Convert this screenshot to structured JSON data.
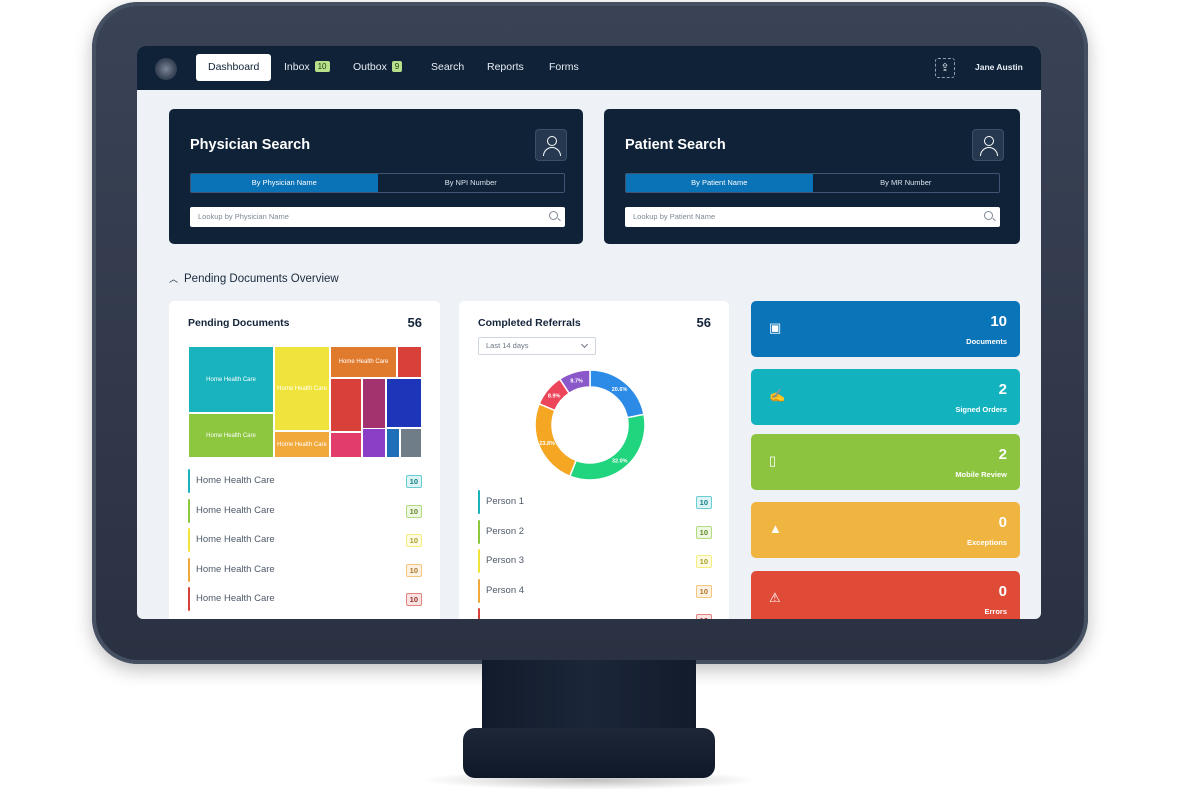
{
  "nav": {
    "tabs": [
      {
        "label": "Dashboard"
      },
      {
        "label": "Inbox",
        "badge": "10"
      },
      {
        "label": "Outbox",
        "badge": "9"
      },
      {
        "label": "Search"
      },
      {
        "label": "Reports"
      },
      {
        "label": "Forms"
      }
    ],
    "user_name": "Jane Austin",
    "upload_icon": "upload-icon"
  },
  "physician_search": {
    "title": "Physician Search",
    "tabs": [
      "By Physician Name",
      "By NPI Number"
    ],
    "placeholder": "Lookup by Physician Name",
    "icon": "doctor-icon"
  },
  "patient_search": {
    "title": "Patient Search",
    "tabs": [
      "By Patient Name",
      "By MR Number"
    ],
    "placeholder": "Lookup by Patient Name",
    "icon": "patient-icon"
  },
  "overview": {
    "title": "Pending Documents Overview"
  },
  "pending_documents": {
    "title": "Pending Documents",
    "count": "56",
    "treemap": [
      {
        "label": "Home Health Care",
        "color": "#19b3bd"
      },
      {
        "label": "Home Health Care",
        "color": "#8dc63f"
      },
      {
        "label": "Home Health Care",
        "color": "#f0e43c"
      },
      {
        "label": "Home Health Care",
        "color": "#f2a93b"
      },
      {
        "label": "Home Health Care",
        "color": "#e07b2e"
      },
      {
        "label": "",
        "color": "#d7413a"
      },
      {
        "label": "",
        "color": "#d7413a"
      },
      {
        "label": "",
        "color": "#a3336e"
      },
      {
        "label": "",
        "color": "#1d35b8"
      },
      {
        "label": "",
        "color": "#e23c6a"
      },
      {
        "label": "",
        "color": "#8a3fc6"
      },
      {
        "label": "",
        "color": "#1f6fb8"
      },
      {
        "label": "",
        "color": "#6f7d89"
      }
    ],
    "list": [
      {
        "label": "Home Health Care",
        "value": "10",
        "color": "#19b3bd"
      },
      {
        "label": "Home Health Care",
        "value": "10",
        "color": "#8dc63f"
      },
      {
        "label": "Home Health Care",
        "value": "10",
        "color": "#f0e43c"
      },
      {
        "label": "Home Health Care",
        "value": "10",
        "color": "#f2a93b"
      },
      {
        "label": "Home Health Care",
        "value": "10",
        "color": "#d7413a"
      }
    ]
  },
  "completed_referrals": {
    "title": "Completed Referrals",
    "count": "56",
    "range": "Last 14 days",
    "chart_data": {
      "type": "pie",
      "series": [
        {
          "value": 20.6,
          "label": "20.6%",
          "color": "#2b8be6"
        },
        {
          "value": 32.0,
          "label": "32.0%",
          "color": "#21d47e"
        },
        {
          "value": 23.8,
          "label": "23.8%",
          "color": "#f5a623"
        },
        {
          "value": 8.9,
          "label": "8.9%",
          "color": "#ec4458"
        },
        {
          "value": 8.7,
          "label": "8.7%",
          "color": "#8a58c9"
        }
      ]
    },
    "list": [
      {
        "label": "Person 1",
        "value": "10",
        "color": "#19b3bd"
      },
      {
        "label": "Person 2",
        "value": "10",
        "color": "#8dc63f"
      },
      {
        "label": "Person 3",
        "value": "10",
        "color": "#f0e43c"
      },
      {
        "label": "Person 4",
        "value": "10",
        "color": "#f2a93b"
      },
      {
        "label": "",
        "value": "10",
        "color": "#d7413a"
      }
    ]
  },
  "status_cards": [
    {
      "value": "10",
      "label": "Documents",
      "color": "#0a74b9",
      "icon": "inbox-icon",
      "glyph": "▣"
    },
    {
      "value": "2",
      "label": "Signed Orders",
      "color": "#12b3bf",
      "icon": "signature-icon",
      "glyph": "✍"
    },
    {
      "value": "2",
      "label": "Mobile Review",
      "color": "#8cc43f",
      "icon": "mobile-icon",
      "glyph": "▯"
    },
    {
      "value": "0",
      "label": "Exceptions",
      "color": "#f0b541",
      "icon": "cone-icon",
      "glyph": "▲"
    },
    {
      "value": "0",
      "label": "Errors",
      "color": "#e04b38",
      "icon": "warning-icon",
      "glyph": "⚠"
    }
  ]
}
